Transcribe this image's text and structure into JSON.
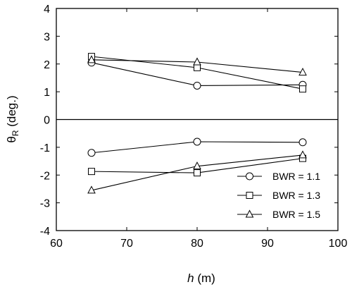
{
  "chart_data": {
    "type": "line",
    "xlabel_italic": "h",
    "xlabel_unit": " (m)",
    "ylabel_main": "θ",
    "ylabel_sub": "R",
    "ylabel_unit": " (deg.)",
    "xlim": [
      60,
      100
    ],
    "ylim": [
      -4,
      4
    ],
    "x_ticks": [
      60,
      70,
      80,
      90,
      100
    ],
    "y_ticks": [
      -4,
      -3,
      -2,
      -1,
      0,
      1,
      2,
      3,
      4
    ],
    "grid": false,
    "zero_line": true,
    "legend_position": "bottom-right",
    "series": [
      {
        "name": "BWR = 1.1",
        "marker": "circle",
        "upper": {
          "x": [
            65,
            80,
            95
          ],
          "y": [
            2.05,
            1.22,
            1.25
          ]
        },
        "lower": {
          "x": [
            65,
            80,
            95
          ],
          "y": [
            -1.2,
            -0.8,
            -0.82
          ]
        }
      },
      {
        "name": "BWR = 1.3",
        "marker": "square",
        "upper": {
          "x": [
            65,
            80,
            95
          ],
          "y": [
            2.27,
            1.87,
            1.1
          ]
        },
        "lower": {
          "x": [
            65,
            80,
            95
          ],
          "y": [
            -1.87,
            -1.92,
            -1.4
          ]
        }
      },
      {
        "name": "BWR = 1.5",
        "marker": "triangle",
        "upper": {
          "x": [
            65,
            80,
            95
          ],
          "y": [
            2.15,
            2.07,
            1.7
          ]
        },
        "lower": {
          "x": [
            65,
            80,
            95
          ],
          "y": [
            -2.55,
            -1.68,
            -1.28
          ]
        }
      }
    ]
  }
}
